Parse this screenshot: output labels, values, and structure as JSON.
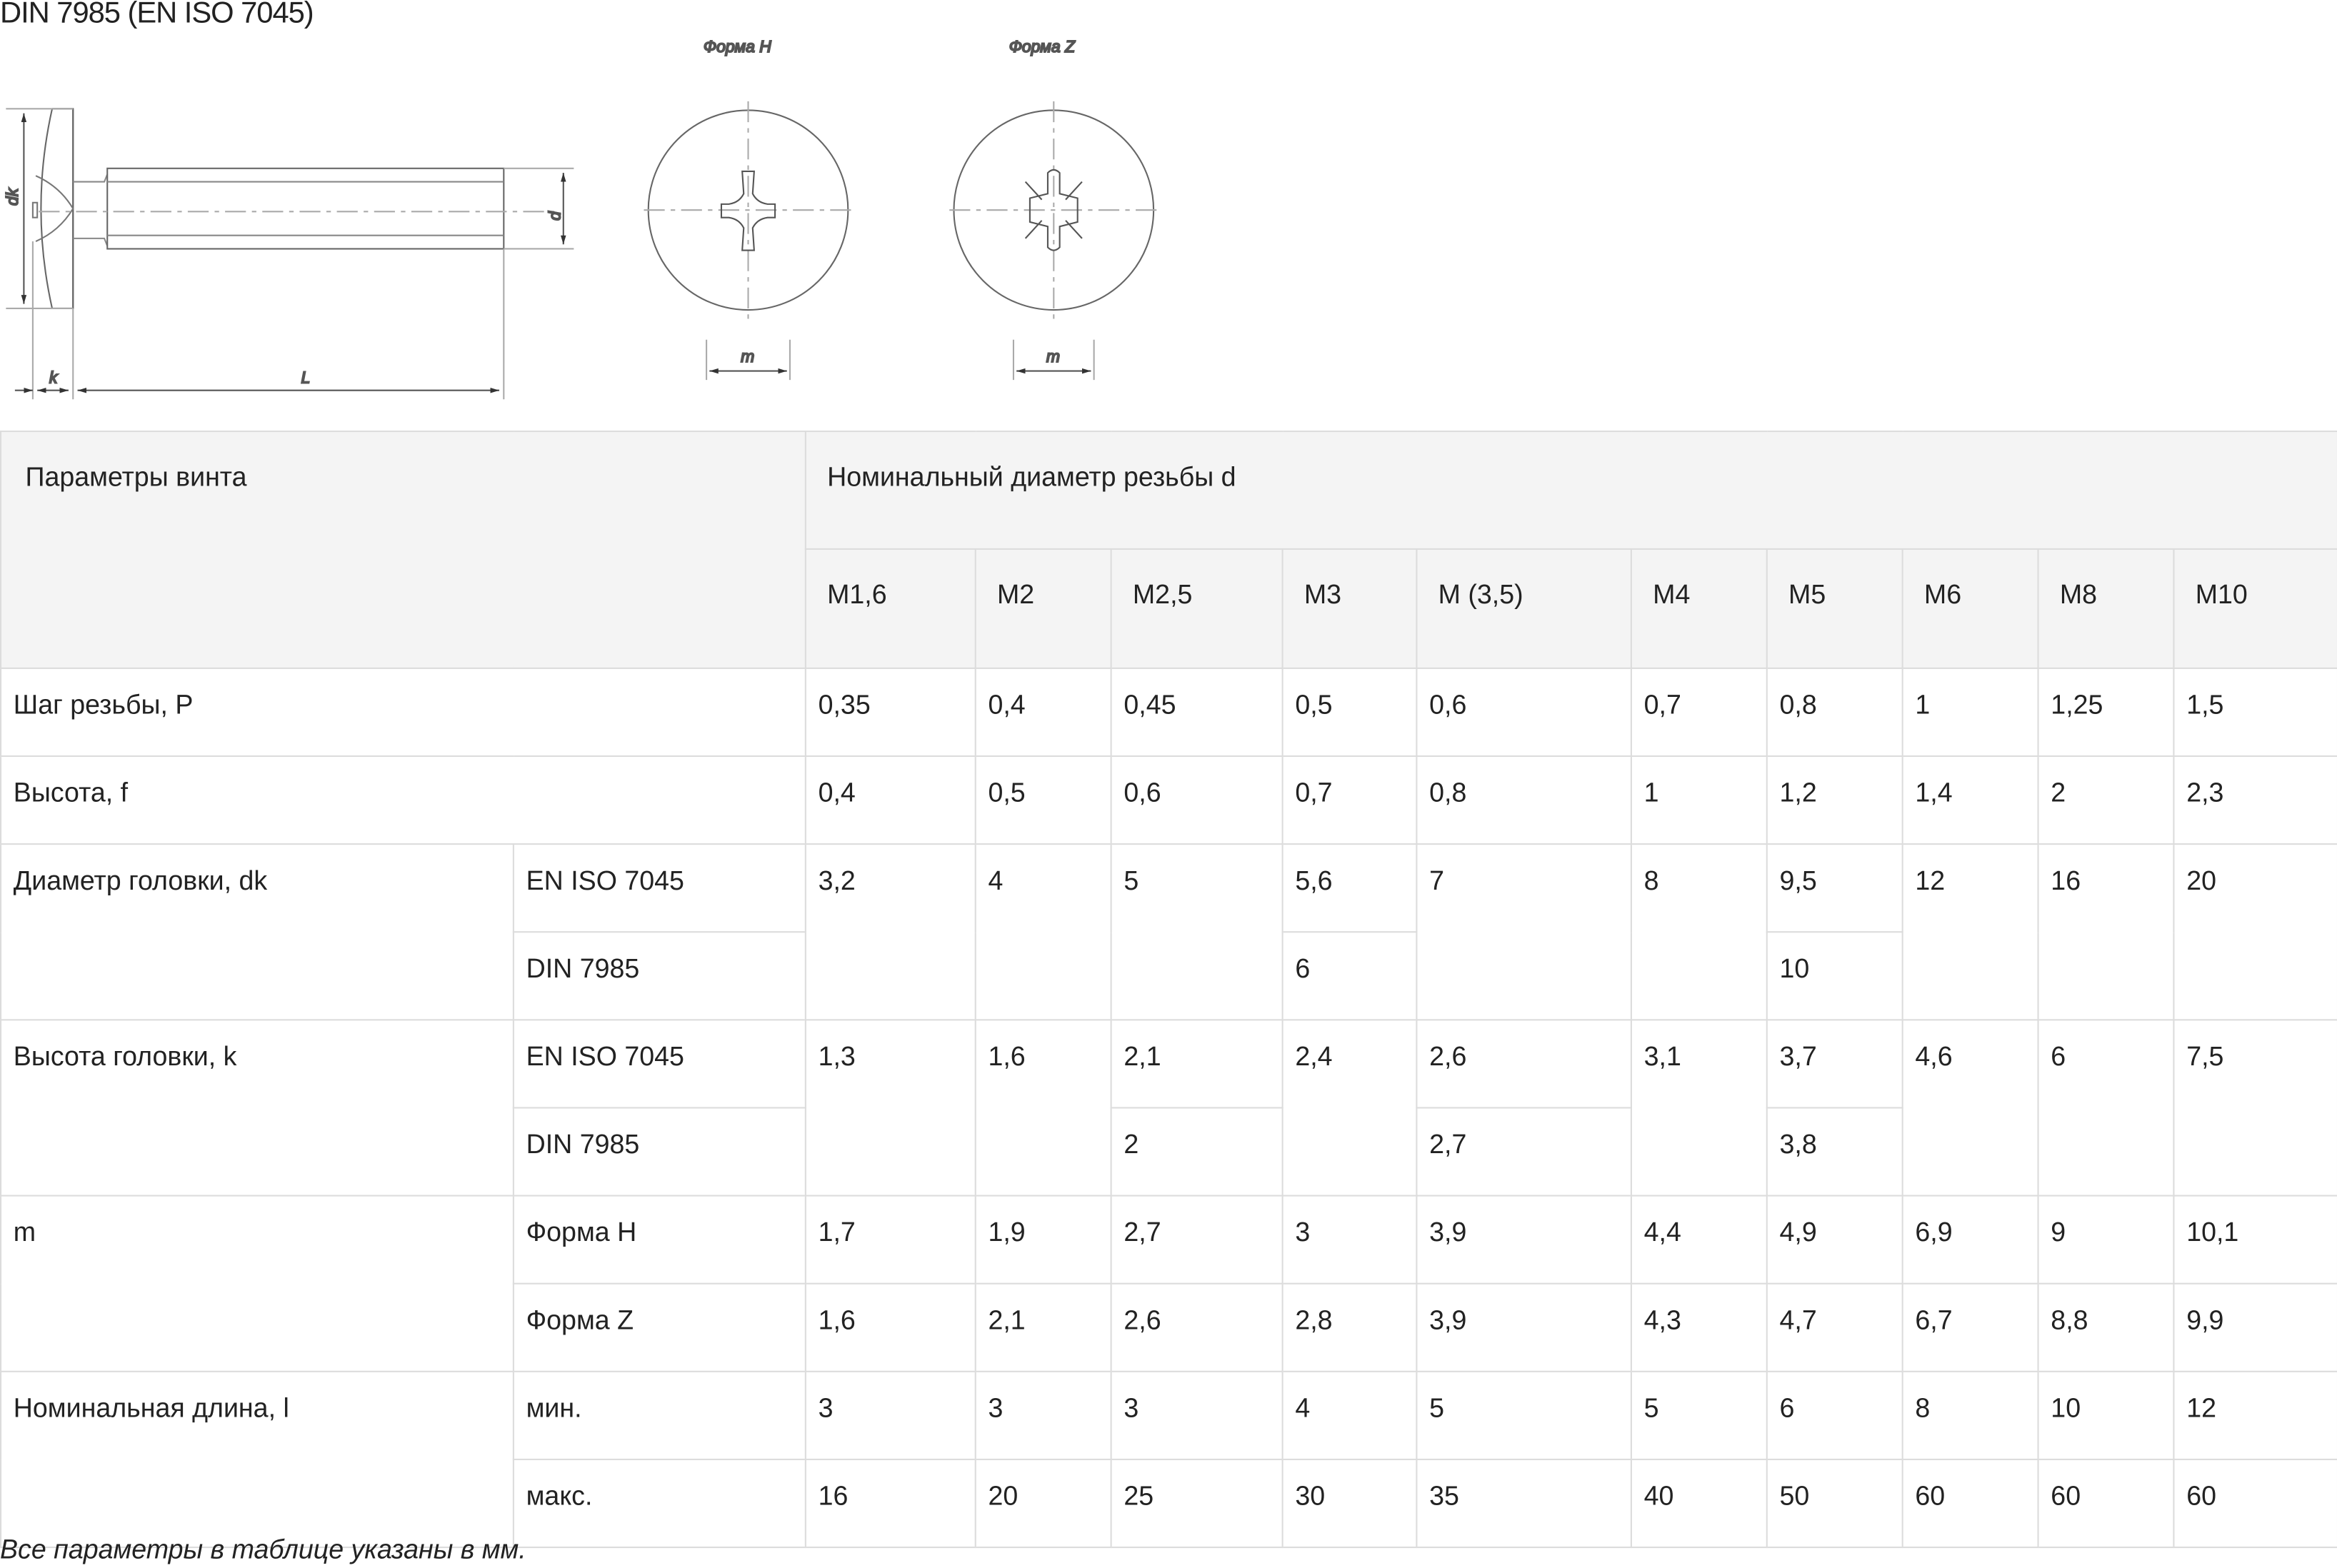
{
  "title": "DIN 7985 (EN ISO 7045)",
  "drawing": {
    "labels": {
      "dk": "dk",
      "d": "d",
      "k": "k",
      "L": "L",
      "m": "m"
    },
    "form_h": "Форма H",
    "form_z": "Форма Z"
  },
  "table": {
    "param_header": "Параметры винта",
    "nominal_header": "Номинальный диаметр резьбы d",
    "sizes": [
      "M1,6",
      "M2",
      "M2,5",
      "M3",
      "M (3,5)",
      "M4",
      "M5",
      "M6",
      "M8",
      "M10"
    ],
    "single_rows": [
      {
        "label": "Шаг резьбы, P",
        "values": [
          "0,35",
          "0,4",
          "0,45",
          "0,5",
          "0,6",
          "0,7",
          "0,8",
          "1",
          "1,25",
          "1,5"
        ]
      },
      {
        "label": "Высота, f",
        "values": [
          "0,4",
          "0,5",
          "0,6",
          "0,7",
          "0,8",
          "1",
          "1,2",
          "1,4",
          "2",
          "2,3"
        ]
      }
    ],
    "double_rows": [
      {
        "label": "Диаметр головки, dk",
        "sub": [
          "EN ISO 7045",
          "DIN 7985"
        ],
        "values": [
          [
            "3,2",
            "4",
            "5",
            "5,6",
            "7",
            "8",
            "9,5",
            "12",
            "16",
            "20"
          ],
          [
            null,
            null,
            null,
            "6",
            null,
            null,
            "10",
            null,
            null,
            null
          ]
        ]
      },
      {
        "label": "Высота головки, k",
        "sub": [
          "EN ISO 7045",
          "DIN 7985"
        ],
        "values": [
          [
            "1,3",
            "1,6",
            "2,1",
            "2,4",
            "2,6",
            "3,1",
            "3,7",
            "4,6",
            "6",
            "7,5"
          ],
          [
            null,
            null,
            "2",
            null,
            "2,7",
            null,
            "3,8",
            null,
            null,
            null
          ]
        ]
      },
      {
        "label": "m",
        "sub": [
          "Форма H",
          "Форма Z"
        ],
        "values": [
          [
            "1,7",
            "1,9",
            "2,7",
            "3",
            "3,9",
            "4,4",
            "4,9",
            "6,9",
            "9",
            "10,1"
          ],
          [
            "1,6",
            "2,1",
            "2,6",
            "2,8",
            "3,9",
            "4,3",
            "4,7",
            "6,7",
            "8,8",
            "9,9"
          ]
        ]
      },
      {
        "label": "Номинальная длина, l",
        "sub": [
          "мин.",
          "макс."
        ],
        "values": [
          [
            "3",
            "3",
            "3",
            "4",
            "5",
            "5",
            "6",
            "8",
            "10",
            "12"
          ],
          [
            "16",
            "20",
            "25",
            "30",
            "35",
            "40",
            "50",
            "60",
            "60",
            "60"
          ]
        ]
      }
    ]
  },
  "footnote": "Все параметры в таблице указаны в мм."
}
